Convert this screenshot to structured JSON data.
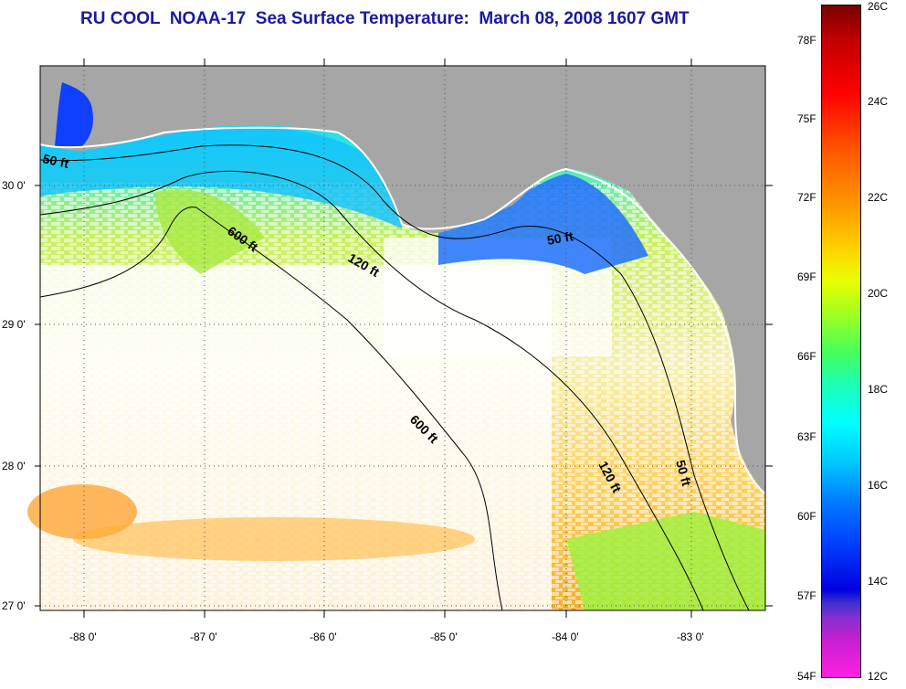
{
  "title": "RU COOL  NOAA-17  Sea Surface Temperature:  March 08, 2008 1607 GMT",
  "lat_ticks": [
    "30 0'",
    "29 0'",
    "28 0'",
    "27 0'"
  ],
  "lon_ticks": [
    "-88 0'",
    "-87 0'",
    "-86 0'",
    "-85 0'",
    "-84 0'",
    "-83 0'"
  ],
  "contours": {
    "c600a": "600 ft",
    "c600b": "600 ft",
    "c120a": "120 ft",
    "c120b": "120 ft",
    "c50a": "50 ft",
    "c50b": "50 ft",
    "c50c": "50 ft"
  },
  "colorbar": {
    "fahrenheit": [
      "78F",
      "75F",
      "72F",
      "69F",
      "66F",
      "63F",
      "60F",
      "57F",
      "54F"
    ],
    "celsius": [
      "26C",
      "24C",
      "22C",
      "20C",
      "18C",
      "16C",
      "14C",
      "12C"
    ]
  },
  "colors": {
    "land": "#a6a6a6",
    "cloud": "#ffffff",
    "title": "#1a1aa0"
  }
}
